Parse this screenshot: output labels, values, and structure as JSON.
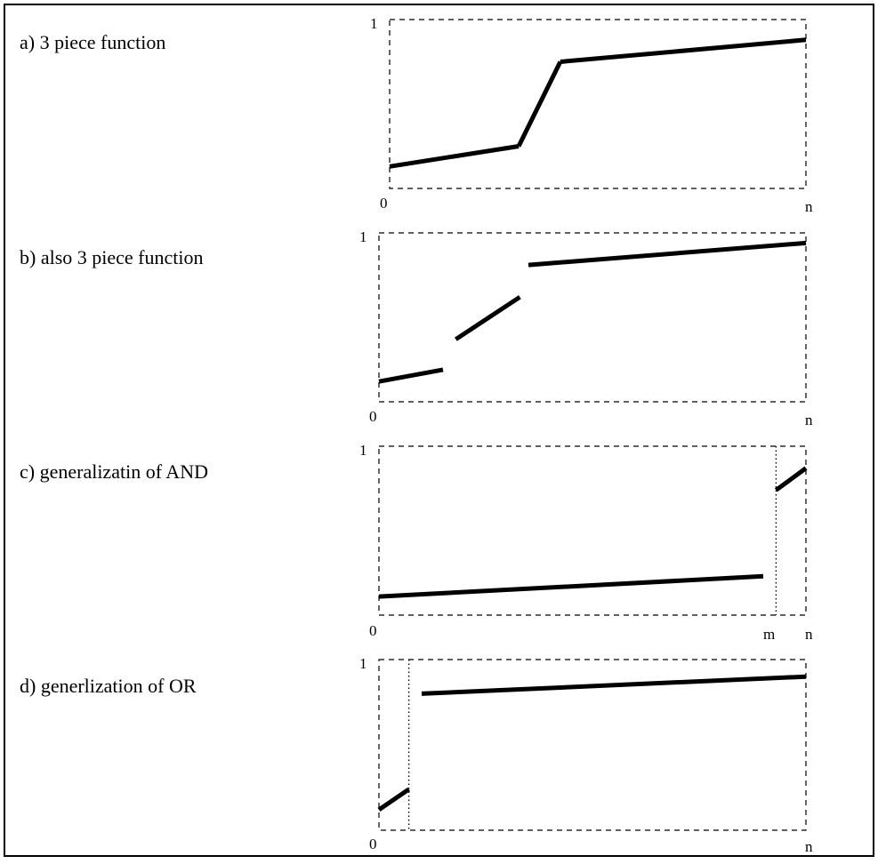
{
  "panels": [
    {
      "caption": "a)  3 piece function",
      "y_label": "1",
      "x_labels": [
        "0",
        "n"
      ],
      "segments": [
        [
          [
            0.0,
            0.13
          ],
          [
            0.31,
            0.25
          ]
        ],
        [
          [
            0.31,
            0.25
          ],
          [
            0.41,
            0.75
          ]
        ],
        [
          [
            0.41,
            0.75
          ],
          [
            1.0,
            0.88
          ]
        ]
      ],
      "dividers": []
    },
    {
      "caption": "b)  also 3 piece function",
      "y_label": "1",
      "x_labels": [
        "0",
        "n"
      ],
      "segments": [
        [
          [
            0.0,
            0.12
          ],
          [
            0.15,
            0.19
          ]
        ],
        [
          [
            0.18,
            0.37
          ],
          [
            0.33,
            0.62
          ]
        ],
        [
          [
            0.35,
            0.81
          ],
          [
            1.0,
            0.94
          ]
        ]
      ],
      "dividers": []
    },
    {
      "caption": "c)  generalizatin of AND",
      "y_label": "1",
      "x_labels": [
        "0",
        "m",
        "n"
      ],
      "segments": [
        [
          [
            0.0,
            0.11
          ],
          [
            0.9,
            0.23
          ]
        ],
        [
          [
            0.93,
            0.74
          ],
          [
            1.0,
            0.87
          ]
        ]
      ],
      "dividers": [
        0.93
      ]
    },
    {
      "caption": "d)  generlization of OR",
      "y_label": "1",
      "x_labels": [
        "0",
        "n"
      ],
      "segments": [
        [
          [
            0.0,
            0.12
          ],
          [
            0.07,
            0.24
          ]
        ],
        [
          [
            0.1,
            0.8
          ],
          [
            1.0,
            0.9
          ]
        ]
      ],
      "dividers": [
        0.07
      ]
    }
  ]
}
